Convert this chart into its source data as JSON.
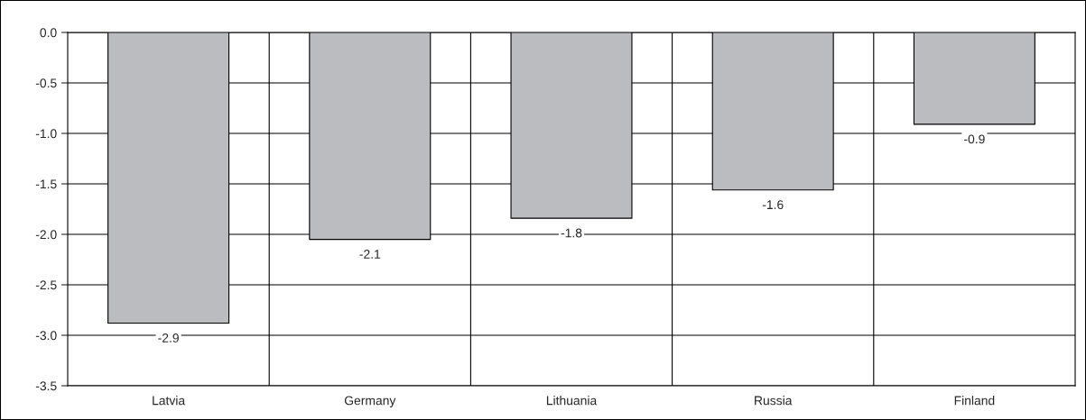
{
  "chart_data": {
    "type": "bar",
    "categories": [
      "Latvia",
      "Germany",
      "Lithuania",
      "Russia",
      "Finland"
    ],
    "values": [
      -2.88,
      -2.05,
      -1.84,
      -1.56,
      -0.91
    ],
    "value_labels": [
      "-2.9",
      "-2.1",
      "-1.8",
      "-1.6",
      "-0.9"
    ],
    "color": "#bbbcc0",
    "ylim": [
      -3.5,
      0.0
    ],
    "yticks": [
      {
        "value": 0.0,
        "label": "0.0"
      },
      {
        "value": -0.5,
        "label": "-0.5"
      },
      {
        "value": -1.0,
        "label": "-1.0"
      },
      {
        "value": -1.5,
        "label": "-1.5"
      },
      {
        "value": -2.0,
        "label": "-2.0"
      },
      {
        "value": -2.5,
        "label": "-2.5"
      },
      {
        "value": -3.0,
        "label": "-3.0"
      },
      {
        "value": -3.5,
        "label": "-3.5"
      }
    ],
    "grid": true
  }
}
